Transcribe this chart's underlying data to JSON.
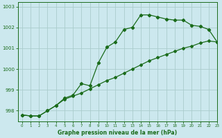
{
  "title": "Graphe pression niveau de la mer (hPa)",
  "background_color": "#cce8ee",
  "line_color": "#1a6b1a",
  "grid_color": "#aacccc",
  "xlim": [
    -0.5,
    23
  ],
  "ylim": [
    997.5,
    1003.2
  ],
  "yticks": [
    998,
    999,
    1000,
    1001,
    1002,
    1003
  ],
  "xticks": [
    0,
    1,
    2,
    3,
    4,
    5,
    6,
    7,
    8,
    9,
    10,
    11,
    12,
    13,
    14,
    15,
    16,
    17,
    18,
    19,
    20,
    21,
    22,
    23
  ],
  "series1_x": [
    0,
    1,
    2,
    3,
    4,
    5,
    6,
    7,
    8,
    9,
    10,
    11,
    12,
    13,
    14,
    15,
    16,
    17,
    18,
    19,
    20,
    21,
    22,
    23
  ],
  "series1_y": [
    997.8,
    997.75,
    997.75,
    998.0,
    998.25,
    998.6,
    998.75,
    999.3,
    999.2,
    1000.3,
    1001.05,
    1001.3,
    1001.9,
    1002.0,
    1002.6,
    1002.6,
    1002.5,
    1002.4,
    1002.35,
    1002.35,
    1002.1,
    1002.05,
    1001.9,
    1001.3
  ],
  "series2_x": [
    0,
    1,
    2,
    3,
    4,
    5,
    6,
    7,
    8,
    9,
    10,
    11,
    12,
    13,
    14,
    15,
    16,
    17,
    18,
    19,
    20,
    21,
    22,
    23
  ],
  "series2_y": [
    997.8,
    997.75,
    997.75,
    998.0,
    998.25,
    998.55,
    998.7,
    998.85,
    999.05,
    999.25,
    999.45,
    999.6,
    999.8,
    1000.0,
    1000.2,
    1000.4,
    1000.55,
    1000.7,
    1000.85,
    1001.0,
    1001.1,
    1001.25,
    1001.35,
    1001.3
  ]
}
